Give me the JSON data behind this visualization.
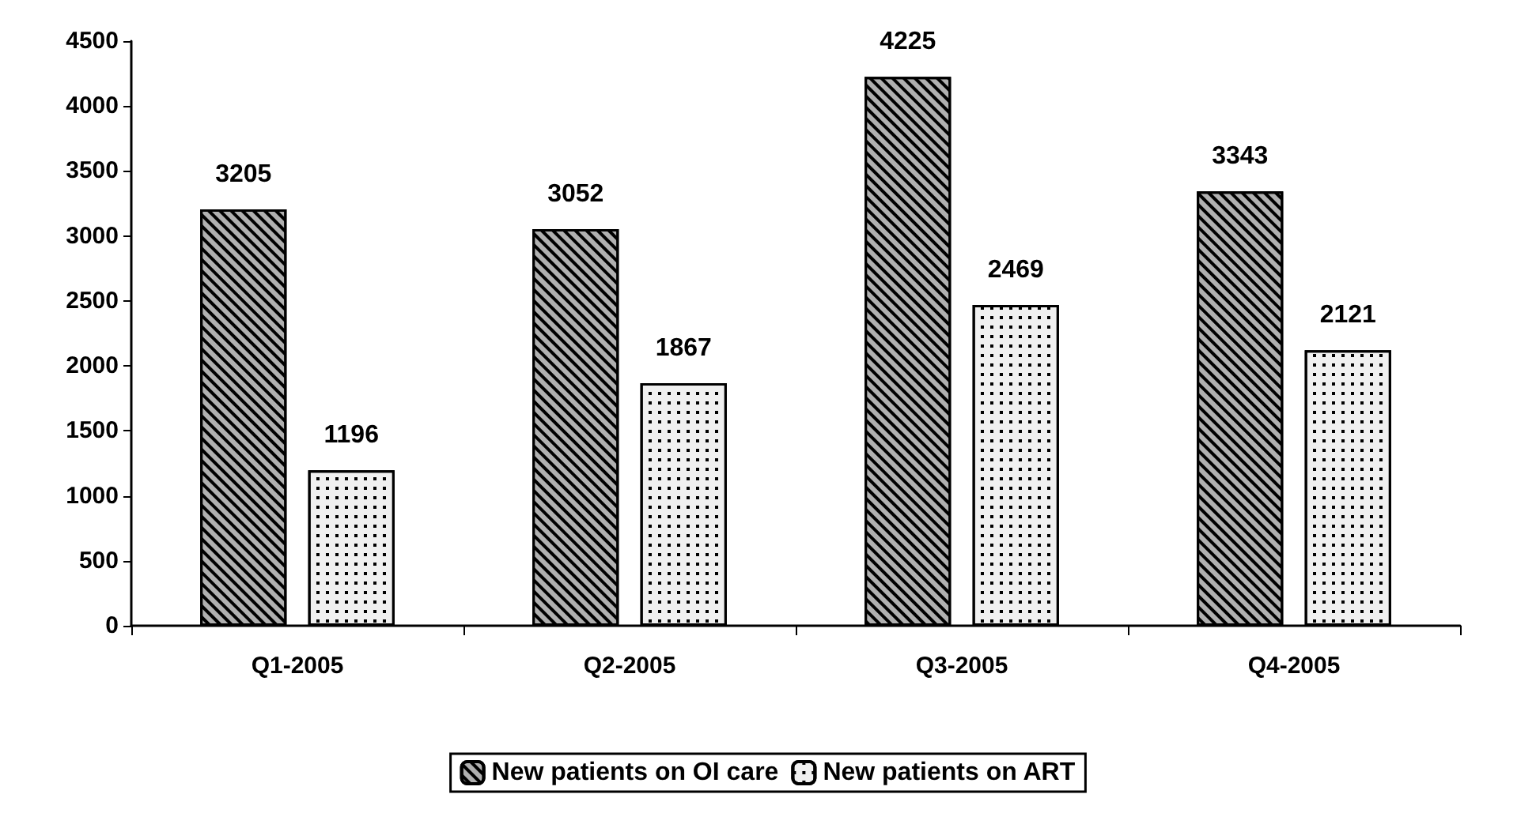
{
  "chart_data": {
    "type": "bar",
    "categories": [
      "Q1-2005",
      "Q2-2005",
      "Q3-2005",
      "Q4-2005"
    ],
    "series": [
      {
        "name": "New patients on OI care",
        "color": "#b0b0b0",
        "values": [
          3205,
          3052,
          4225,
          3343
        ]
      },
      {
        "name": "New patients on ART",
        "color": "#f0f0f0",
        "values": [
          1196,
          1867,
          2469,
          2121
        ]
      }
    ],
    "ylim": [
      0,
      4500
    ],
    "yticks": [
      0,
      500,
      1000,
      1500,
      2000,
      2500,
      3000,
      3500,
      4000,
      4500
    ],
    "data_labels": true,
    "grid": false,
    "legend": "bottom"
  }
}
